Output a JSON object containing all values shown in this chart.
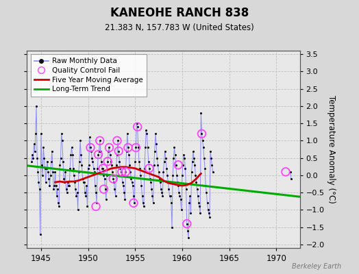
{
  "title": "KANEOHE RANCH 838",
  "subtitle": "21.383 N, 157.783 W (United States)",
  "ylabel": "Temperature Anomaly (°C)",
  "watermark": "Berkeley Earth",
  "xlim": [
    1943.5,
    1972.5
  ],
  "ylim": [
    -2.1,
    3.6
  ],
  "yticks": [
    -2,
    -1.5,
    -1,
    -0.5,
    0,
    0.5,
    1,
    1.5,
    2,
    2.5,
    3,
    3.5
  ],
  "xticks": [
    1945,
    1950,
    1955,
    1960,
    1965,
    1970
  ],
  "bg_color": "#d8d8d8",
  "plot_bg": "#e8e8e8",
  "raw_color": "#8888ff",
  "dot_color": "#111111",
  "ma_color": "#cc0000",
  "trend_color": "#00aa00",
  "qc_color": "#ff44ff",
  "raw_x": [
    1944.0,
    1944.083,
    1944.167,
    1944.25,
    1944.333,
    1944.417,
    1944.5,
    1944.583,
    1944.667,
    1944.75,
    1944.833,
    1944.917,
    1945.0,
    1945.083,
    1945.167,
    1945.25,
    1945.333,
    1945.417,
    1945.5,
    1945.583,
    1945.667,
    1945.75,
    1945.833,
    1945.917,
    1946.0,
    1946.083,
    1946.167,
    1946.25,
    1946.333,
    1946.417,
    1946.5,
    1946.583,
    1946.667,
    1946.75,
    1946.833,
    1946.917,
    1947.0,
    1947.083,
    1947.167,
    1947.25,
    1947.333,
    1947.417,
    1947.5,
    1947.583,
    1947.667,
    1947.75,
    1947.833,
    1947.917,
    1948.0,
    1948.083,
    1948.167,
    1948.25,
    1948.333,
    1948.417,
    1948.5,
    1948.583,
    1948.667,
    1948.75,
    1948.833,
    1948.917,
    1949.0,
    1949.083,
    1949.167,
    1949.25,
    1949.333,
    1949.417,
    1949.5,
    1949.583,
    1949.667,
    1949.75,
    1949.833,
    1949.917,
    1950.0,
    1950.083,
    1950.167,
    1950.25,
    1950.333,
    1950.417,
    1950.5,
    1950.583,
    1950.667,
    1950.75,
    1950.833,
    1950.917,
    1951.0,
    1951.083,
    1951.167,
    1951.25,
    1951.333,
    1951.417,
    1951.5,
    1951.583,
    1951.667,
    1951.75,
    1951.833,
    1951.917,
    1952.0,
    1952.083,
    1952.167,
    1952.25,
    1952.333,
    1952.417,
    1952.5,
    1952.583,
    1952.667,
    1952.75,
    1952.833,
    1952.917,
    1953.0,
    1953.083,
    1953.167,
    1953.25,
    1953.333,
    1953.417,
    1953.5,
    1953.583,
    1953.667,
    1953.75,
    1953.833,
    1953.917,
    1954.0,
    1954.083,
    1954.167,
    1954.25,
    1954.333,
    1954.417,
    1954.5,
    1954.583,
    1954.667,
    1954.75,
    1954.833,
    1954.917,
    1955.0,
    1955.083,
    1955.167,
    1955.25,
    1955.333,
    1955.417,
    1955.5,
    1955.583,
    1955.667,
    1955.75,
    1955.833,
    1955.917,
    1956.0,
    1956.083,
    1956.167,
    1956.25,
    1956.333,
    1956.417,
    1956.5,
    1956.583,
    1956.667,
    1956.75,
    1956.833,
    1956.917,
    1957.0,
    1957.083,
    1957.167,
    1957.25,
    1957.333,
    1957.417,
    1957.5,
    1957.583,
    1957.667,
    1957.75,
    1957.833,
    1957.917,
    1958.0,
    1958.083,
    1958.167,
    1958.25,
    1958.333,
    1958.417,
    1958.5,
    1958.583,
    1958.667,
    1958.75,
    1958.833,
    1958.917,
    1959.0,
    1959.083,
    1959.167,
    1959.25,
    1959.333,
    1959.417,
    1959.5,
    1959.583,
    1959.667,
    1959.75,
    1959.833,
    1959.917,
    1960.0,
    1960.083,
    1960.167,
    1960.25,
    1960.333,
    1960.417,
    1960.5,
    1960.583,
    1960.667,
    1960.75,
    1960.833,
    1960.917,
    1961.0,
    1961.083,
    1961.167,
    1961.25,
    1961.333,
    1961.417,
    1961.5,
    1961.583,
    1961.667,
    1961.75,
    1961.833,
    1961.917,
    1962.0,
    1962.083,
    1962.167,
    1962.25,
    1962.333,
    1962.417,
    1962.5,
    1962.583,
    1962.667,
    1962.75,
    1962.833,
    1962.917,
    1963.0,
    1963.083,
    1963.167,
    1963.25,
    1971.5,
    1971.583
  ],
  "raw_y": [
    0.4,
    0.6,
    0.5,
    0.9,
    0.7,
    1.2,
    2.0,
    0.5,
    0.1,
    -0.2,
    -0.4,
    -1.7,
    1.2,
    0.3,
    0.0,
    0.8,
    0.5,
    0.2,
    -0.2,
    0.2,
    0.4,
    0.1,
    -0.1,
    -0.3,
    0.0,
    0.4,
    0.7,
    0.1,
    -0.4,
    -0.3,
    0.1,
    -0.3,
    -0.6,
    -0.4,
    -0.8,
    -0.9,
    0.3,
    0.5,
    1.2,
    1.0,
    0.4,
    -0.1,
    -0.2,
    0.1,
    -0.4,
    -0.5,
    -0.2,
    -0.3,
    -0.3,
    0.2,
    0.6,
    0.8,
    0.6,
    0.2,
    0.0,
    -0.2,
    -0.4,
    -0.6,
    -0.5,
    -1.0,
    0.1,
    0.4,
    1.0,
    0.6,
    0.3,
    -0.1,
    -0.2,
    -0.2,
    -0.5,
    -0.6,
    -0.3,
    -0.9,
    0.2,
    0.3,
    1.1,
    0.8,
    0.7,
    0.5,
    0.4,
    0.2,
    0.1,
    -0.3,
    -0.5,
    -0.8,
    0.2,
    0.6,
    0.7,
    1.0,
    0.7,
    0.4,
    0.2,
    0.2,
    0.0,
    -0.1,
    -0.4,
    -0.7,
    0.0,
    0.4,
    0.7,
    0.8,
    0.6,
    0.4,
    0.3,
    0.1,
    -0.1,
    -0.2,
    -0.4,
    -0.6,
    0.3,
    0.6,
    1.0,
    0.7,
    0.4,
    0.2,
    0.1,
    0.0,
    -0.2,
    -0.3,
    -0.5,
    -0.7,
    0.1,
    0.7,
    1.2,
    0.8,
    0.6,
    0.3,
    0.1,
    -0.1,
    -0.2,
    -0.3,
    -0.6,
    -0.8,
    0.4,
    0.8,
    1.5,
    1.4,
    0.8,
    0.4,
    0.2,
    0.0,
    -0.3,
    -0.6,
    -0.8,
    -0.9,
    0.2,
    0.8,
    1.3,
    1.2,
    0.8,
    0.4,
    0.2,
    -0.1,
    -0.2,
    -0.4,
    -0.6,
    -0.8,
    0.3,
    0.7,
    1.2,
    0.9,
    0.5,
    0.3,
    0.1,
    -0.1,
    -0.2,
    -0.4,
    -0.5,
    -0.6,
    0.1,
    0.4,
    0.7,
    0.5,
    0.2,
    0.0,
    -0.2,
    -0.4,
    -0.6,
    -0.6,
    -0.8,
    -1.5,
    0.0,
    0.5,
    0.8,
    0.6,
    0.3,
    0.0,
    -0.2,
    -0.3,
    -0.5,
    -0.6,
    -0.7,
    -1.0,
    0.0,
    0.3,
    0.6,
    0.5,
    0.2,
    -0.4,
    -1.4,
    -1.6,
    -1.8,
    -0.8,
    -0.6,
    -1.1,
    0.1,
    0.4,
    0.7,
    0.5,
    0.3,
    0.0,
    -0.2,
    -0.4,
    -0.6,
    -0.8,
    -0.9,
    -1.1,
    1.8,
    1.2,
    1.0,
    0.8,
    0.5,
    0.2,
    -0.3,
    -0.5,
    -0.8,
    -1.0,
    -1.1,
    -1.2,
    0.7,
    0.5,
    0.3,
    0.1,
    0.1,
    -0.1
  ],
  "qc_x": [
    1950.25,
    1950.833,
    1951.083,
    1951.25,
    1951.583,
    1951.667,
    1952.083,
    1952.25,
    1952.667,
    1953.083,
    1953.25,
    1953.583,
    1954.0,
    1954.25,
    1954.833,
    1955.083,
    1955.25,
    1956.5,
    1959.583,
    1960.5,
    1962.083,
    1971.0
  ],
  "qc_y": [
    0.8,
    -0.9,
    0.6,
    1.0,
    0.2,
    -0.4,
    0.4,
    0.8,
    -0.1,
    1.0,
    0.7,
    0.1,
    0.1,
    0.8,
    -0.8,
    0.8,
    1.4,
    0.2,
    0.3,
    -1.4,
    1.2,
    0.1
  ],
  "ma_x": [
    1946.5,
    1947.0,
    1947.5,
    1948.0,
    1948.5,
    1949.0,
    1949.5,
    1950.0,
    1950.5,
    1951.0,
    1951.5,
    1952.0,
    1952.5,
    1953.0,
    1953.5,
    1954.0,
    1954.5,
    1955.0,
    1955.5,
    1956.0,
    1956.5,
    1957.0,
    1957.5,
    1958.0,
    1958.5,
    1959.0,
    1959.5,
    1960.0,
    1960.5,
    1961.0,
    1961.5,
    1962.0
  ],
  "ma_y": [
    -0.2,
    -0.18,
    -0.2,
    -0.18,
    -0.18,
    -0.15,
    -0.1,
    -0.05,
    0.0,
    0.05,
    0.1,
    0.15,
    0.2,
    0.22,
    0.24,
    0.24,
    0.22,
    0.2,
    0.15,
    0.1,
    0.05,
    0.0,
    -0.05,
    -0.15,
    -0.22,
    -0.25,
    -0.28,
    -0.3,
    -0.28,
    -0.22,
    -0.1,
    0.05
  ],
  "trend_x": [
    1943.5,
    1972.5
  ],
  "trend_y": [
    0.28,
    -0.62
  ]
}
